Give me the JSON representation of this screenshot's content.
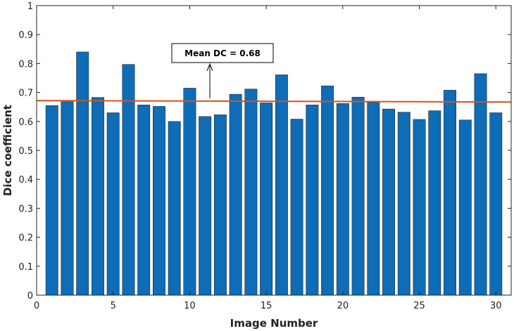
{
  "chart_data": {
    "type": "bar",
    "xlabel": "Image Number",
    "ylabel": "Dice coefficient",
    "xlim": [
      0,
      31
    ],
    "ylim": [
      0,
      1
    ],
    "xticks": [
      0,
      5,
      10,
      15,
      20,
      25,
      30
    ],
    "yticks": [
      0,
      0.1,
      0.2,
      0.3,
      0.4,
      0.5,
      0.6,
      0.7,
      0.8,
      0.9,
      1
    ],
    "x": [
      1,
      2,
      3,
      4,
      5,
      6,
      7,
      8,
      9,
      10,
      11,
      12,
      13,
      14,
      15,
      16,
      17,
      18,
      19,
      20,
      21,
      22,
      23,
      24,
      25,
      26,
      27,
      28,
      29,
      30
    ],
    "values": [
      0.655,
      0.668,
      0.84,
      0.683,
      0.63,
      0.797,
      0.657,
      0.652,
      0.6,
      0.715,
      0.617,
      0.623,
      0.694,
      0.712,
      0.664,
      0.761,
      0.608,
      0.657,
      0.723,
      0.662,
      0.684,
      0.666,
      0.643,
      0.632,
      0.607,
      0.637,
      0.708,
      0.605,
      0.765,
      0.63
    ],
    "bar_color": "#0f6cb6",
    "mean_line": {
      "y_start": 0.672,
      "y_end": 0.667,
      "color": "#d95319"
    },
    "annotation": {
      "text": "Mean DC = 0.68",
      "arrow_x": 11.3
    },
    "grid": false
  }
}
